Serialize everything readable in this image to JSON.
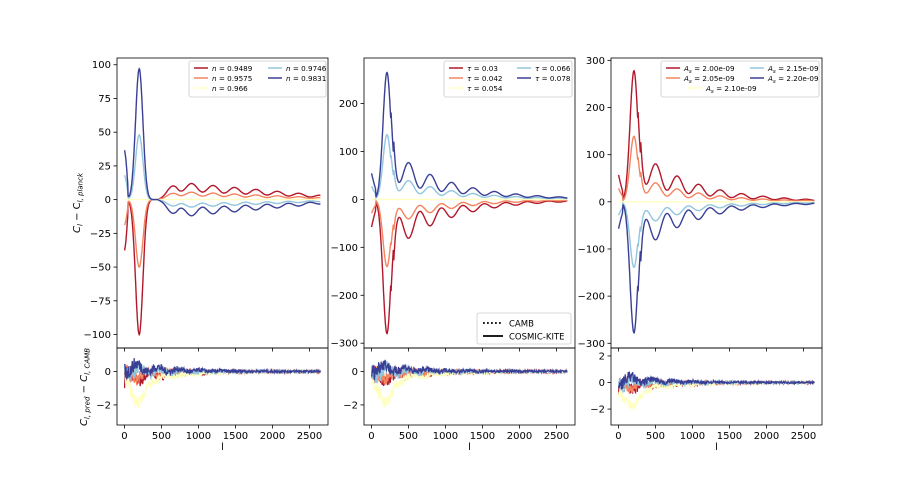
{
  "colors": {
    "c1": "#b2182b",
    "c2": "#f4845f",
    "c3": "#ffffbf",
    "c4": "#92c5de",
    "c5": "#3a3f96"
  },
  "chart_data": [
    {
      "type": "line",
      "id": "n",
      "ylabel": "C_l − C_l,planck",
      "ylabel_main": "C",
      "ylabel_sub": "l",
      "ylabel_mid": " − C",
      "ylabel_sub2": "l, planck",
      "xlim": [
        -100,
        2750
      ],
      "ylim": [
        -110,
        105
      ],
      "yticks": [
        -100,
        -75,
        -50,
        -25,
        0,
        25,
        50,
        75,
        100
      ],
      "legend_position": "upper-right",
      "series": [
        {
          "name": "n = 0.9489",
          "symbol": "n",
          "value": "0.9489",
          "color": "#b2182b",
          "amp": -100,
          "lowfreq": 13
        },
        {
          "name": "n = 0.9575",
          "symbol": "n",
          "value": "0.9575",
          "color": "#f4845f",
          "amp": -50,
          "lowfreq": 6
        },
        {
          "name": "n = 0.966",
          "symbol": "n",
          "value": "0.966",
          "color": "#ffffbf",
          "amp": 0,
          "lowfreq": 0
        },
        {
          "name": "n = 0.9746",
          "symbol": "n",
          "value": "0.9746",
          "color": "#92c5de",
          "amp": 48,
          "lowfreq": -6
        },
        {
          "name": "n = 0.9831",
          "symbol": "n",
          "value": "0.9831",
          "color": "#3a3f96",
          "amp": 97,
          "lowfreq": -13
        }
      ],
      "residual": {
        "ylim": [
          -3.2,
          1.4
        ],
        "yticks": [
          -2,
          0
        ],
        "xticks": [
          0,
          500,
          1000,
          1500,
          2000,
          2500
        ],
        "xlabel": "l"
      }
    },
    {
      "type": "line",
      "id": "tau",
      "xlim": [
        -100,
        2750
      ],
      "ylim": [
        -310,
        295
      ],
      "yticks": [
        -300,
        -200,
        -100,
        0,
        100,
        200
      ],
      "legend_position": "upper-right",
      "series": [
        {
          "name": "τ = 0.03",
          "symbol": "τ",
          "value": "0.03",
          "color": "#b2182b",
          "amp": -280
        },
        {
          "name": "τ = 0.042",
          "symbol": "τ",
          "value": "0.042",
          "color": "#f4845f",
          "amp": -140
        },
        {
          "name": "τ = 0.054",
          "symbol": "τ",
          "value": "0.054",
          "color": "#ffffbf",
          "amp": 0
        },
        {
          "name": "τ = 0.066",
          "symbol": "τ",
          "value": "0.066",
          "color": "#92c5de",
          "amp": 135
        },
        {
          "name": "τ = 0.078",
          "symbol": "τ",
          "value": "0.078",
          "color": "#3a3f96",
          "amp": 265
        }
      ],
      "style_legend": [
        {
          "label": "CAMB",
          "style": "dotted"
        },
        {
          "label": "COSMIC-KITE",
          "style": "solid"
        }
      ],
      "residual": {
        "ylim": [
          -3.2,
          1.4
        ],
        "yticks": [
          -2,
          0
        ],
        "xticks": [
          0,
          500,
          1000,
          1500,
          2000,
          2500
        ],
        "xlabel": "l"
      }
    },
    {
      "type": "line",
      "id": "As",
      "xlim": [
        -100,
        2750
      ],
      "ylim": [
        -310,
        305
      ],
      "yticks": [
        -300,
        -200,
        -100,
        0,
        100,
        200,
        300
      ],
      "legend_position": "upper-right",
      "series": [
        {
          "name": "A_s = 2.00e-09",
          "symbol": "A",
          "value": "2.00e-09",
          "color": "#b2182b",
          "amp": 278
        },
        {
          "name": "A_s = 2.05e-09",
          "symbol": "A",
          "value": "2.05e-09",
          "color": "#f4845f",
          "amp": 139
        },
        {
          "name": "A_s = 2.10e-09",
          "symbol": "A",
          "value": "2.10e-09",
          "color": "#ffffbf",
          "amp": 0
        },
        {
          "name": "A_s = 2.15e-09",
          "symbol": "A",
          "value": "2.15e-09",
          "color": "#92c5de",
          "amp": -139
        },
        {
          "name": "A_s = 2.20e-09",
          "symbol": "A",
          "value": "2.20e-09",
          "color": "#3a3f96",
          "amp": -278
        }
      ],
      "residual": {
        "ylim": [
          -3.2,
          2.6
        ],
        "yticks": [
          -2,
          0,
          2
        ],
        "xticks": [
          0,
          500,
          1000,
          1500,
          2000,
          2500
        ],
        "xlabel": "l"
      }
    }
  ],
  "residual_ylabel": "C_l,pred − C_l,CAMB",
  "residual_ylabel_parts": {
    "a": "C",
    "as": "l, pred",
    "b": " − C",
    "bs": "l, CAMB"
  },
  "legend_eq": " = ",
  "legend_sub_s": "s"
}
